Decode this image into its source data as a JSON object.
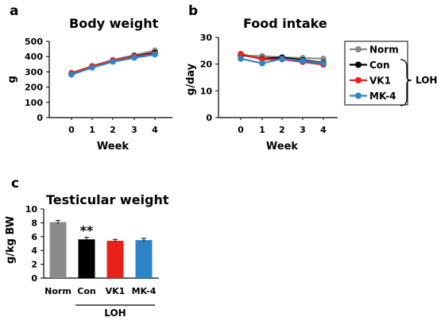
{
  "colors": {
    "Norm": "#8a8a8a",
    "Con": "#000000",
    "VK1": "#e8221b",
    "MK-4": "#2e84c6"
  },
  "legend": {
    "items": [
      "Norm",
      "Con",
      "VK1",
      "MK-4"
    ],
    "group_label": "LOH"
  },
  "chart_data": [
    {
      "panel": "a",
      "type": "line",
      "title": "Body weight",
      "xlabel": "Week",
      "ylabel": "g",
      "x": [
        0,
        1,
        2,
        3,
        4
      ],
      "ylim": [
        0,
        500
      ],
      "yticks": [
        0,
        100,
        200,
        300,
        400,
        500
      ],
      "series": [
        {
          "name": "Norm",
          "values": [
            290,
            338,
            378,
            410,
            440
          ]
        },
        {
          "name": "Con",
          "values": [
            288,
            335,
            373,
            402,
            425
          ]
        },
        {
          "name": "VK1",
          "values": [
            292,
            337,
            374,
            400,
            418
          ]
        },
        {
          "name": "MK-4",
          "values": [
            282,
            328,
            366,
            392,
            414
          ]
        }
      ]
    },
    {
      "panel": "b",
      "type": "line",
      "title": "Food intake",
      "xlabel": "Week",
      "ylabel": "g/day",
      "x": [
        0,
        1,
        2,
        3,
        4
      ],
      "ylim": [
        0,
        30
      ],
      "yticks": [
        0,
        10,
        20,
        30
      ],
      "series": [
        {
          "name": "Norm",
          "values": [
            23.2,
            23.0,
            22.5,
            22.3,
            22.0
          ]
        },
        {
          "name": "Con",
          "values": [
            23.5,
            22.0,
            22.5,
            21.5,
            20.5
          ]
        },
        {
          "name": "VK1",
          "values": [
            23.8,
            21.8,
            21.8,
            20.8,
            19.8
          ]
        },
        {
          "name": "MK-4",
          "values": [
            22.0,
            20.3,
            22.0,
            21.2,
            20.3
          ]
        }
      ]
    },
    {
      "panel": "c",
      "type": "bar",
      "title": "Testicular weight",
      "xlabel": "",
      "ylabel": "g/kg BW",
      "group_label": "LOH",
      "ylim": [
        0,
        10
      ],
      "yticks": [
        0,
        2,
        4,
        6,
        8,
        10
      ],
      "categories": [
        "Norm",
        "Con",
        "VK1",
        "MK-4"
      ],
      "values": [
        8.1,
        5.6,
        5.4,
        5.5
      ],
      "errors": [
        0.25,
        0.3,
        0.2,
        0.25
      ],
      "annotations": [
        {
          "category": "Con",
          "text": "**"
        }
      ]
    }
  ]
}
